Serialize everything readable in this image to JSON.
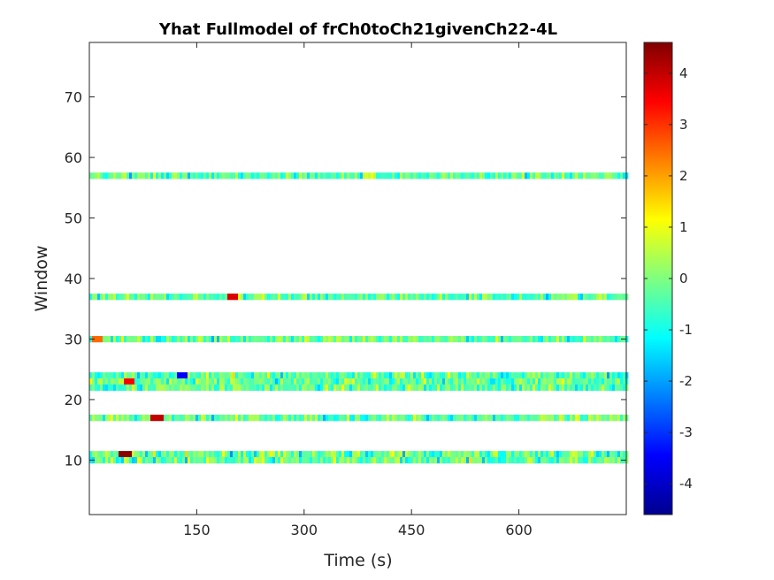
{
  "chart_data": {
    "type": "heatmap",
    "title": "Yhat Fullmodel of frCh0toCh21givenCh22-4L",
    "xlabel": "Time (s)",
    "ylabel": "Window",
    "xlim": [
      0,
      750
    ],
    "ylim": [
      1,
      79
    ],
    "xticks": [
      150,
      300,
      450,
      600
    ],
    "yticks": [
      10,
      20,
      30,
      40,
      50,
      60,
      70
    ],
    "colormap": "jet",
    "clim": [
      -4.6,
      4.6
    ],
    "colorbar_ticks": [
      4,
      3,
      2,
      1,
      0,
      -1,
      -2,
      -3,
      -4
    ],
    "grid": false,
    "rows": [
      {
        "window_start": 9.5,
        "window_end": 11.5
      },
      {
        "window_start": 16.5,
        "window_end": 17.5
      },
      {
        "window_start": 21.5,
        "window_end": 24.5
      },
      {
        "window_start": 29.5,
        "window_end": 30.5
      },
      {
        "window_start": 36.5,
        "window_end": 37.5
      },
      {
        "window_start": 56.5,
        "window_end": 57.5
      }
    ],
    "hotspots": [
      {
        "window": 10,
        "time": 50,
        "value": 4.5
      },
      {
        "window": 17,
        "time": 95,
        "value": 4.0
      },
      {
        "window": 37,
        "time": 200,
        "value": 3.8
      },
      {
        "window": 23,
        "time": 55,
        "value": 3.5
      },
      {
        "window": 30,
        "time": 10,
        "value": 2.5
      },
      {
        "window": 22,
        "time": 130,
        "value": -3.5
      }
    ]
  }
}
